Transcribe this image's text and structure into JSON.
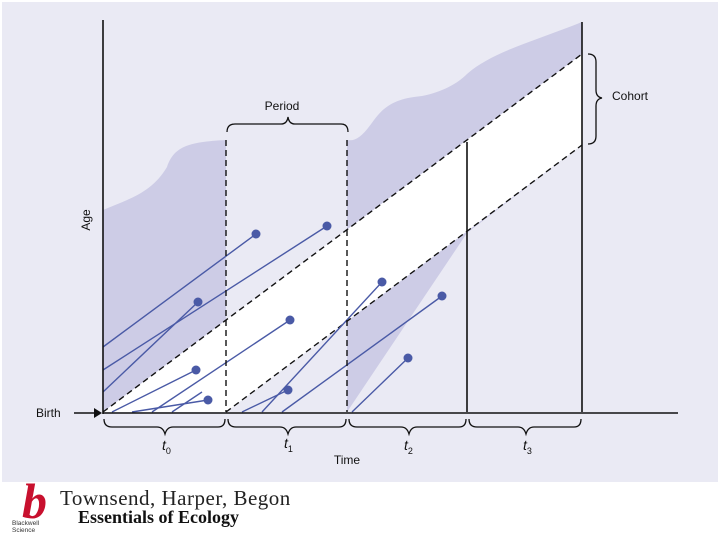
{
  "diagram": {
    "ylabel": "Age",
    "birth_label": "Birth",
    "xlabel": "Time",
    "period_label": "Period",
    "cohort_label": "Cohort",
    "intervals": [
      {
        "t": "t",
        "sub": "0"
      },
      {
        "t": "t",
        "sub": "1"
      },
      {
        "t": "t",
        "sub": "2"
      },
      {
        "t": "t",
        "sub": "3"
      }
    ],
    "colors": {
      "shade": "#cdcce6",
      "lifeline": "#4a5aa6",
      "dot": "#4a5aa6",
      "axis": "#111111"
    }
  },
  "footer": {
    "logo_letter": "b",
    "logo_name": "Blackwell Science",
    "authors": "Townsend, Harper, Begon",
    "title": "Essentials of Ecology"
  }
}
